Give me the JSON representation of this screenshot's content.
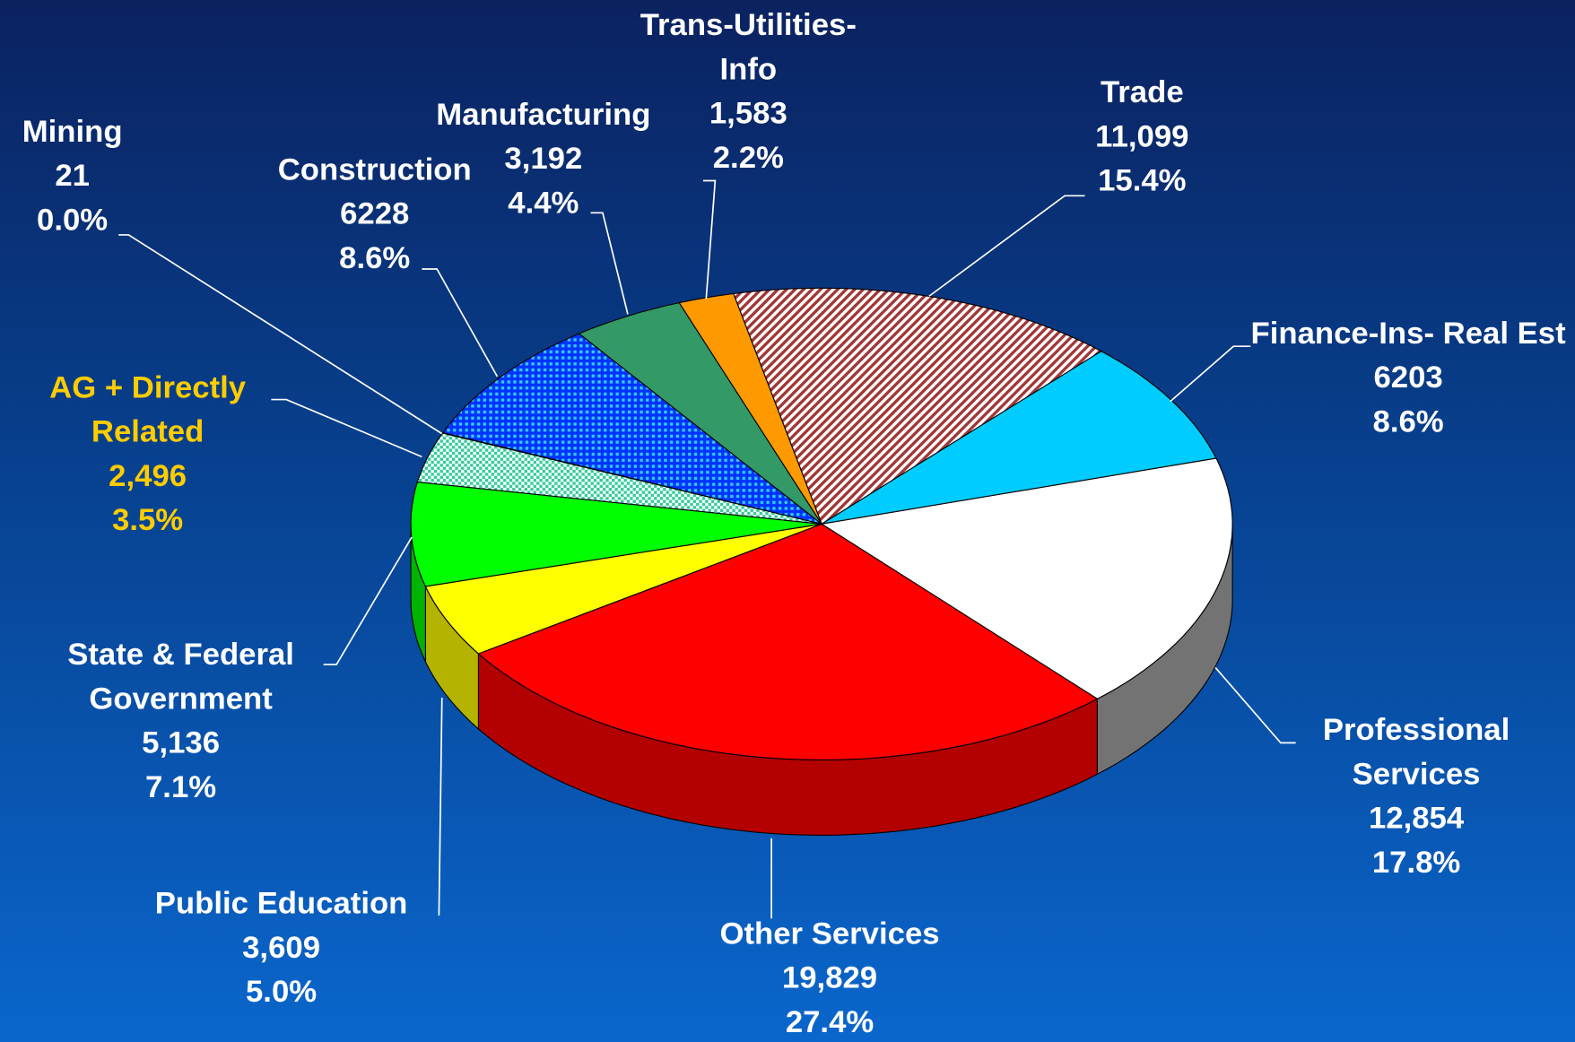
{
  "chart_data": {
    "type": "pie3d",
    "categories": [
      "Trade",
      "Finance-Ins- Real Est",
      "Professional Services",
      "Other Services",
      "Public Education",
      "State & Federal Government",
      "AG + Directly Related",
      "Mining",
      "Construction",
      "Manufacturing",
      "Trans-Utilities-Info"
    ],
    "values": [
      11099,
      6203,
      12854,
      19829,
      3609,
      5136,
      2496,
      21,
      6228,
      3192,
      1583
    ],
    "value_labels": [
      "11,099",
      "6203",
      "12,854",
      "19,829",
      "3,609",
      "5,136",
      "2,496",
      "21",
      "6228",
      "3,192",
      "1,583"
    ],
    "percent_labels": [
      "15.4%",
      "8.6%",
      "17.8%",
      "27.4%",
      "5.0%",
      "7.1%",
      "3.5%",
      "0.0%",
      "8.6%",
      "4.4%",
      "2.2%"
    ],
    "colors": [
      "#a03838",
      "#00ccff",
      "#ffffff",
      "#ff0000",
      "#ffff00",
      "#00ff00",
      "#33cc99",
      "#cc99ff",
      "#0033ff",
      "#339966",
      "#ff9900"
    ],
    "patterns": [
      "hatch",
      null,
      null,
      null,
      null,
      null,
      "checker",
      null,
      "dots",
      null,
      null
    ],
    "label_colors": [
      "#ffffff",
      "#ffffff",
      "#ffffff",
      "#ffffff",
      "#ffffff",
      "#ffffff",
      "#ffcc00",
      "#ffffff",
      "#ffffff",
      "#ffffff",
      "#ffffff"
    ]
  }
}
